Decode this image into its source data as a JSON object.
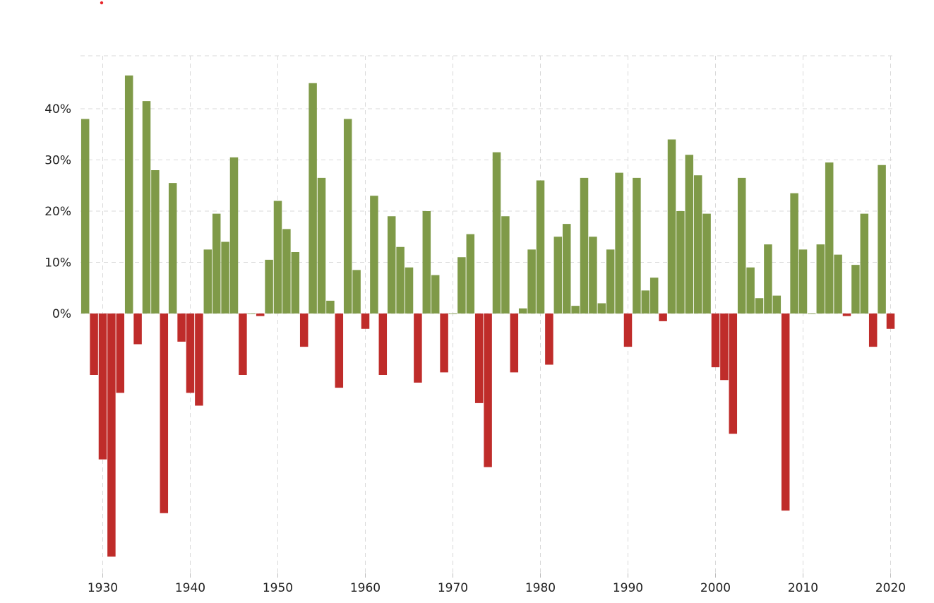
{
  "chart_data": {
    "type": "bar",
    "title": "",
    "xlabel": "",
    "ylabel": "",
    "x_ticks": [
      "1930",
      "1940",
      "1950",
      "1960",
      "1970",
      "1980",
      "1990",
      "2000",
      "2010",
      "2020"
    ],
    "y_ticks": [
      "0%",
      "10%",
      "20%",
      "30%",
      "40%"
    ],
    "ylim": [
      -48,
      50
    ],
    "grid": true,
    "legend": "none",
    "colors": {
      "positive": "#7f9a48",
      "negative": "#bf2c2a",
      "marker": "#e8262b"
    },
    "years": [
      1928,
      1929,
      1930,
      1931,
      1932,
      1933,
      1934,
      1935,
      1936,
      1937,
      1938,
      1939,
      1940,
      1941,
      1942,
      1943,
      1944,
      1945,
      1946,
      1947,
      1948,
      1949,
      1950,
      1951,
      1952,
      1953,
      1954,
      1955,
      1956,
      1957,
      1958,
      1959,
      1960,
      1961,
      1962,
      1963,
      1964,
      1965,
      1966,
      1967,
      1968,
      1969,
      1970,
      1971,
      1972,
      1973,
      1974,
      1975,
      1976,
      1977,
      1978,
      1979,
      1980,
      1981,
      1982,
      1983,
      1984,
      1985,
      1986,
      1987,
      1988,
      1989,
      1990,
      1991,
      1992,
      1993,
      1994,
      1995,
      1996,
      1997,
      1998,
      1999,
      2000,
      2001,
      2002,
      2003,
      2004,
      2005,
      2006,
      2007,
      2008,
      2009,
      2010,
      2011,
      2012,
      2013,
      2014,
      2015,
      2016,
      2017,
      2018,
      2019,
      2020
    ],
    "values": [
      38.0,
      -12.0,
      -28.5,
      -47.5,
      -15.5,
      46.5,
      -6.0,
      41.5,
      28.0,
      -39.0,
      25.5,
      -5.5,
      -15.5,
      -18.0,
      12.5,
      19.5,
      14.0,
      30.5,
      -12.0,
      0.0,
      -0.5,
      10.5,
      22.0,
      16.5,
      12.0,
      -6.5,
      45.0,
      26.5,
      2.5,
      -14.5,
      38.0,
      8.5,
      -3.0,
      23.0,
      -12.0,
      19.0,
      13.0,
      9.0,
      -13.5,
      20.0,
      7.5,
      -11.5,
      0.0,
      11.0,
      15.5,
      -17.5,
      -30.0,
      31.5,
      19.0,
      -11.5,
      1.0,
      12.5,
      26.0,
      -10.0,
      15.0,
      17.5,
      1.5,
      26.5,
      15.0,
      2.0,
      12.5,
      27.5,
      -6.5,
      26.5,
      4.5,
      7.0,
      -1.5,
      34.0,
      20.0,
      31.0,
      27.0,
      19.5,
      -10.5,
      -13.0,
      -23.5,
      26.5,
      9.0,
      3.0,
      13.5,
      3.5,
      -38.5,
      23.5,
      12.5,
      0.0,
      13.5,
      29.5,
      11.5,
      -0.5,
      9.5,
      19.5,
      -6.5,
      29.0,
      -3.0
    ]
  }
}
